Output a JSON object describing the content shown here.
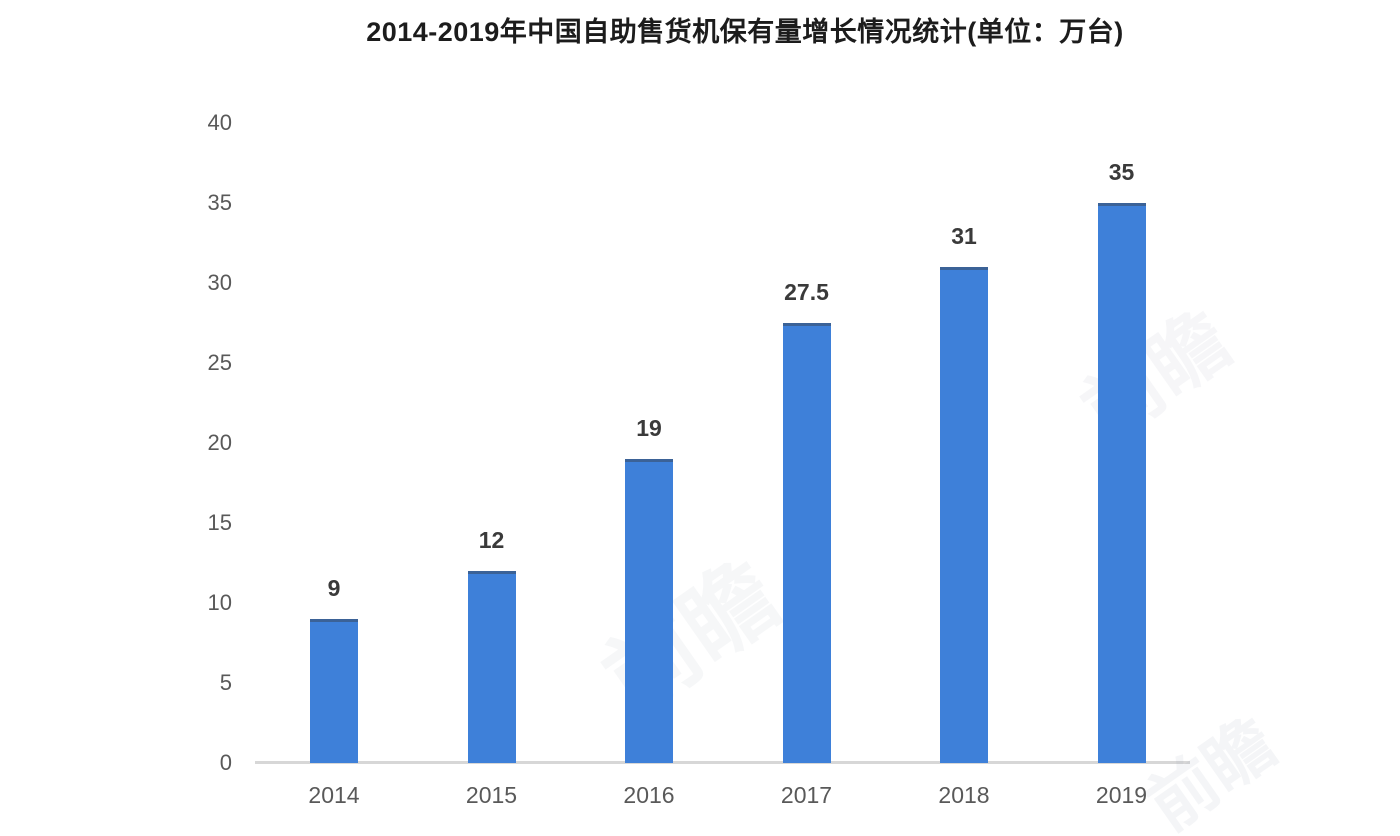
{
  "title": "2014-2019年中国自助售货机保有量增长情况统计(单位：万台)",
  "chart_data": {
    "type": "bar",
    "title": "2014-2019年中国自助售货机保有量增长情况统计(单位：万台)",
    "categories": [
      "2014",
      "2015",
      "2016",
      "2017",
      "2018",
      "2019"
    ],
    "values": [
      9,
      12,
      19,
      27.5,
      31,
      35
    ],
    "value_labels": [
      "9",
      "12",
      "19",
      "27.5",
      "31",
      "35"
    ],
    "unit": "万台",
    "xlabel": "",
    "ylabel": "",
    "ylim": [
      0,
      40
    ],
    "yticks": [
      0,
      5,
      10,
      15,
      20,
      25,
      30,
      35,
      40
    ],
    "grid": false,
    "legend": false,
    "bar_color": "#3e80d9",
    "baseline_color": "#d7d7d7",
    "tick_label_color": "#595959",
    "value_label_color": "#3a3a3a",
    "title_color": "#1c1c1c",
    "background_color": "#ffffff"
  },
  "watermark": {
    "text": "前瞻"
  }
}
